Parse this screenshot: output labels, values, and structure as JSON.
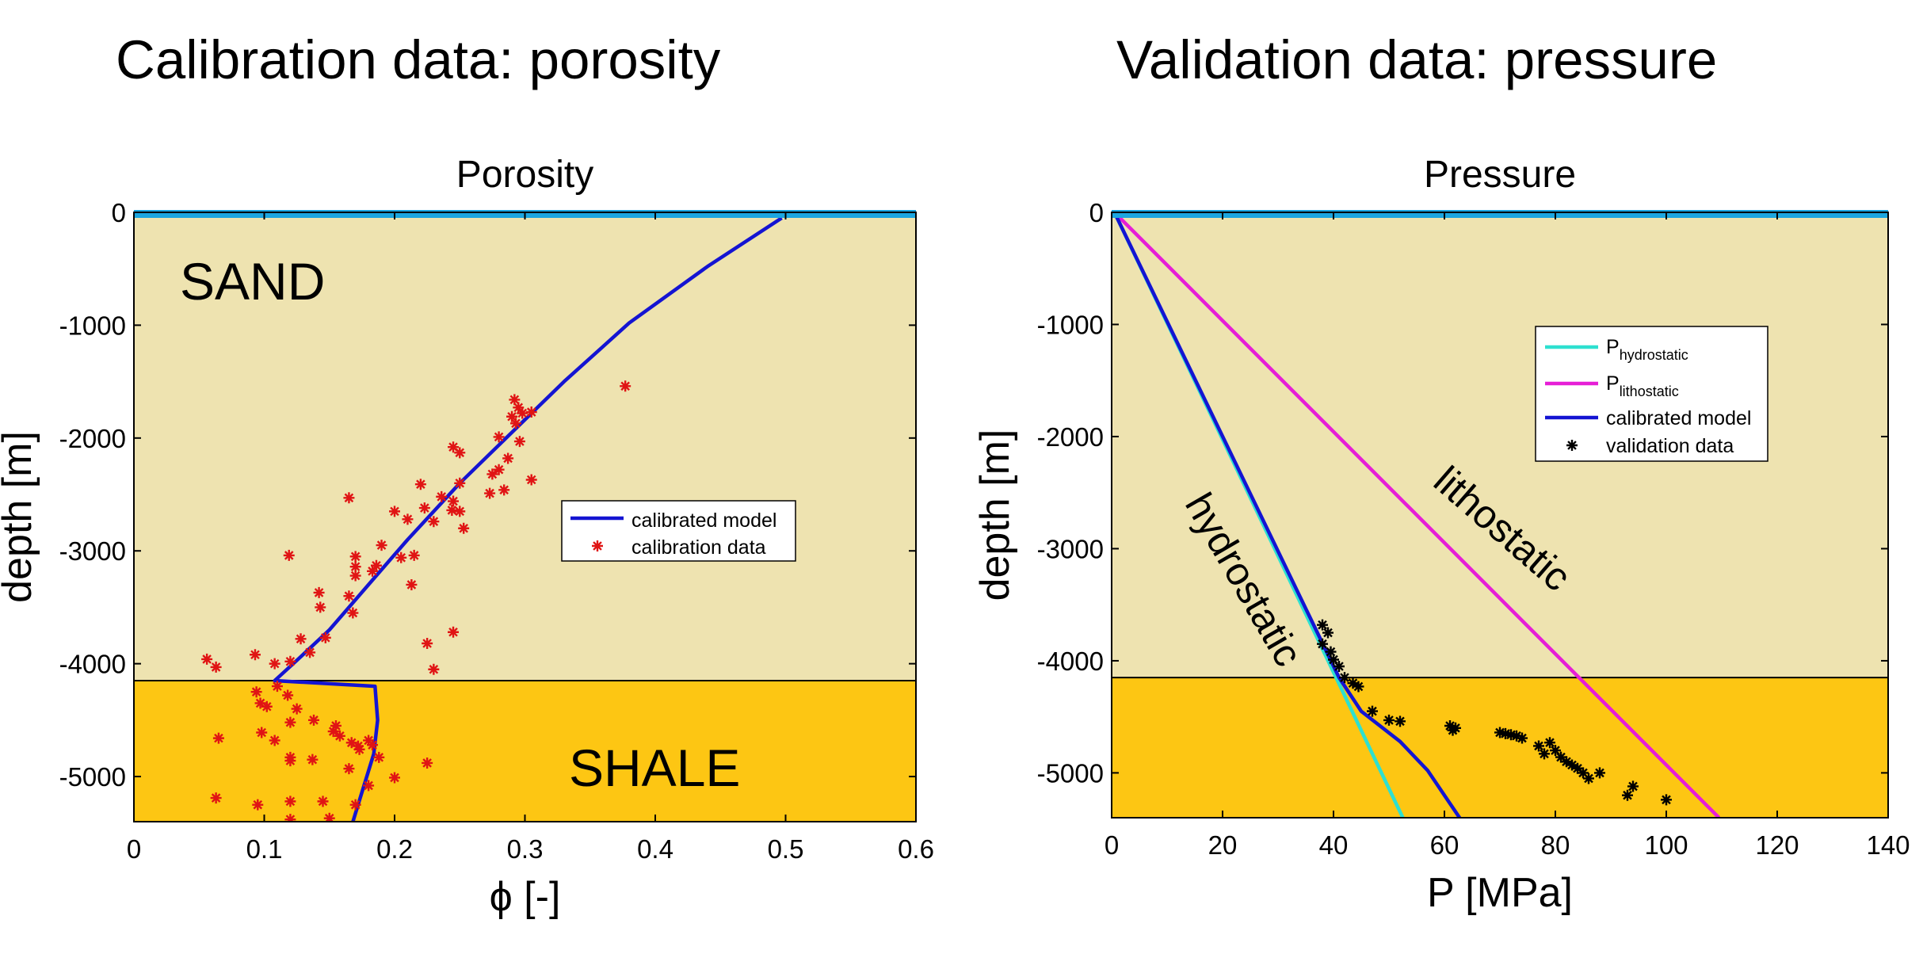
{
  "slide": {
    "left_title": "Calibration data: porosity",
    "right_title": "Validation data: pressure"
  },
  "colors": {
    "sand": "#EEE3B0",
    "shale": "#FDC613",
    "water": "#1CA6E0",
    "model": "#1414D2",
    "calibration_data": "#E01414",
    "hydrostatic": "#2EE0D0",
    "lithostatic": "#E61ED6",
    "validation_data": "#000000"
  },
  "chart_data": [
    {
      "type": "scatter",
      "title": "Porosity",
      "xlabel": "ϕ [-]",
      "ylabel": "depth [m]",
      "xlim": [
        0,
        0.6
      ],
      "ylim": [
        -5400,
        0
      ],
      "xticks": [
        0,
        0.1,
        0.2,
        0.3,
        0.4,
        0.5,
        0.6
      ],
      "yticks": [
        0,
        -1000,
        -2000,
        -3000,
        -4000,
        -5000
      ],
      "xticklabels": [
        "0",
        "0.1",
        "0.2",
        "0.3",
        "0.4",
        "0.5",
        "0.6"
      ],
      "yticklabels": [
        "0",
        "-1000",
        "-2000",
        "-3000",
        "-4000",
        "-5000"
      ],
      "layer_boundary": -4150,
      "layer_labels": [
        "SAND",
        "SHALE"
      ],
      "legend": {
        "location": "right-center",
        "entries": [
          "calibrated model",
          "calibration data"
        ]
      },
      "series": [
        {
          "name": "calibrated model",
          "style": "line",
          "points": [
            [
              0.497,
              -50
            ],
            [
              0.44,
              -480
            ],
            [
              0.38,
              -980
            ],
            [
              0.33,
              -1500
            ],
            [
              0.29,
              -1950
            ],
            [
              0.25,
              -2400
            ],
            [
              0.21,
              -2900
            ],
            [
              0.18,
              -3300
            ],
            [
              0.15,
              -3700
            ],
            [
              0.126,
              -3960
            ],
            [
              0.108,
              -4150
            ],
            [
              0.185,
              -4200
            ],
            [
              0.187,
              -4500
            ],
            [
              0.184,
              -4800
            ],
            [
              0.176,
              -5100
            ],
            [
              0.168,
              -5400
            ]
          ]
        },
        {
          "name": "calibration data",
          "style": "markers",
          "points": [
            [
              0.377,
              -1540
            ],
            [
              0.292,
              -1660
            ],
            [
              0.295,
              -1730
            ],
            [
              0.298,
              -1780
            ],
            [
              0.29,
              -1810
            ],
            [
              0.305,
              -1770
            ],
            [
              0.293,
              -1870
            ],
            [
              0.28,
              -1990
            ],
            [
              0.296,
              -2030
            ],
            [
              0.245,
              -2080
            ],
            [
              0.25,
              -2130
            ],
            [
              0.287,
              -2180
            ],
            [
              0.28,
              -2280
            ],
            [
              0.275,
              -2320
            ],
            [
              0.305,
              -2370
            ],
            [
              0.273,
              -2490
            ],
            [
              0.284,
              -2460
            ],
            [
              0.25,
              -2400
            ],
            [
              0.22,
              -2410
            ],
            [
              0.236,
              -2520
            ],
            [
              0.245,
              -2560
            ],
            [
              0.244,
              -2640
            ],
            [
              0.25,
              -2650
            ],
            [
              0.253,
              -2800
            ],
            [
              0.2,
              -2650
            ],
            [
              0.223,
              -2620
            ],
            [
              0.21,
              -2720
            ],
            [
              0.23,
              -2740
            ],
            [
              0.165,
              -2530
            ],
            [
              0.19,
              -2950
            ],
            [
              0.205,
              -3060
            ],
            [
              0.186,
              -3130
            ],
            [
              0.183,
              -3180
            ],
            [
              0.17,
              -3050
            ],
            [
              0.17,
              -3140
            ],
            [
              0.17,
              -3220
            ],
            [
              0.215,
              -3040
            ],
            [
              0.213,
              -3300
            ],
            [
              0.119,
              -3040
            ],
            [
              0.142,
              -3370
            ],
            [
              0.165,
              -3400
            ],
            [
              0.168,
              -3550
            ],
            [
              0.143,
              -3500
            ],
            [
              0.147,
              -3770
            ],
            [
              0.128,
              -3780
            ],
            [
              0.135,
              -3900
            ],
            [
              0.245,
              -3720
            ],
            [
              0.225,
              -3820
            ],
            [
              0.23,
              -4050
            ],
            [
              0.093,
              -3920
            ],
            [
              0.108,
              -4000
            ],
            [
              0.12,
              -3980
            ],
            [
              0.056,
              -3960
            ],
            [
              0.063,
              -4030
            ],
            [
              0.11,
              -4200
            ],
            [
              0.094,
              -4250
            ],
            [
              0.097,
              -4350
            ],
            [
              0.102,
              -4380
            ],
            [
              0.118,
              -4280
            ],
            [
              0.125,
              -4400
            ],
            [
              0.138,
              -4500
            ],
            [
              0.155,
              -4550
            ],
            [
              0.153,
              -4600
            ],
            [
              0.158,
              -4640
            ],
            [
              0.167,
              -4700
            ],
            [
              0.172,
              -4730
            ],
            [
              0.173,
              -4760
            ],
            [
              0.18,
              -4680
            ],
            [
              0.183,
              -4720
            ],
            [
              0.188,
              -4830
            ],
            [
              0.2,
              -5010
            ],
            [
              0.225,
              -4880
            ],
            [
              0.165,
              -4930
            ],
            [
              0.18,
              -5080
            ],
            [
              0.17,
              -5250
            ],
            [
              0.12,
              -4520
            ],
            [
              0.098,
              -4610
            ],
            [
              0.108,
              -4680
            ],
            [
              0.12,
              -4830
            ],
            [
              0.12,
              -4860
            ],
            [
              0.137,
              -4850
            ],
            [
              0.065,
              -4660
            ],
            [
              0.063,
              -5190
            ],
            [
              0.095,
              -5250
            ],
            [
              0.12,
              -5220
            ],
            [
              0.145,
              -5220
            ],
            [
              0.12,
              -5380
            ],
            [
              0.15,
              -5370
            ]
          ]
        }
      ]
    },
    {
      "type": "line",
      "title": "Pressure",
      "xlabel": "P [MPa]",
      "ylabel": "depth [m]",
      "xlim": [
        0,
        140
      ],
      "ylim": [
        -5400,
        0
      ],
      "xticks": [
        0,
        20,
        40,
        60,
        80,
        100,
        120,
        140
      ],
      "yticks": [
        0,
        -1000,
        -2000,
        -3000,
        -4000,
        -5000
      ],
      "xticklabels": [
        "0",
        "20",
        "40",
        "60",
        "80",
        "100",
        "120",
        "140"
      ],
      "yticklabels": [
        "0",
        "-1000",
        "-2000",
        "-3000",
        "-4000",
        "-5000"
      ],
      "layer_boundary": -4150,
      "annotations": [
        "hydrostatic",
        "lithostatic"
      ],
      "legend": {
        "location": "top-right",
        "entries": [
          "hydrostatic",
          "lithostatic",
          "calibrated model",
          "validation data"
        ]
      },
      "series": [
        {
          "name": "P hydrostatic",
          "legend_main": "P",
          "legend_sub": "hydrostatic",
          "style": "line",
          "points": [
            [
              0.5,
              0
            ],
            [
              52.5,
              -5400
            ]
          ]
        },
        {
          "name": "P lithostatic",
          "legend_main": "P",
          "legend_sub": "lithostatic",
          "style": "line",
          "points": [
            [
              0.5,
              0
            ],
            [
              109.5,
              -5400
            ]
          ]
        },
        {
          "name": "calibrated model",
          "style": "line",
          "points": [
            [
              0.5,
              0
            ],
            [
              41,
              -4150
            ],
            [
              45,
              -4450
            ],
            [
              52,
              -4720
            ],
            [
              57,
              -4980
            ],
            [
              60,
              -5200
            ],
            [
              63,
              -5420
            ]
          ]
        },
        {
          "name": "validation data",
          "style": "markers",
          "points": [
            [
              38,
              -3680
            ],
            [
              39,
              -3750
            ],
            [
              38,
              -3850
            ],
            [
              39.5,
              -3920
            ],
            [
              40,
              -3990
            ],
            [
              41,
              -4050
            ],
            [
              42,
              -4150
            ],
            [
              43.5,
              -4200
            ],
            [
              44.5,
              -4230
            ],
            [
              47,
              -4450
            ],
            [
              50,
              -4530
            ],
            [
              52,
              -4540
            ],
            [
              61,
              -4580
            ],
            [
              62,
              -4600
            ],
            [
              61.5,
              -4620
            ],
            [
              70,
              -4640
            ],
            [
              71,
              -4650
            ],
            [
              72,
              -4660
            ],
            [
              73,
              -4670
            ],
            [
              74,
              -4690
            ],
            [
              77,
              -4760
            ],
            [
              79,
              -4730
            ],
            [
              80,
              -4800
            ],
            [
              78,
              -4830
            ],
            [
              81,
              -4860
            ],
            [
              82,
              -4900
            ],
            [
              83,
              -4930
            ],
            [
              84,
              -4960
            ],
            [
              85,
              -5000
            ],
            [
              86,
              -5050
            ],
            [
              88,
              -5000
            ],
            [
              94,
              -5120
            ],
            [
              93,
              -5200
            ],
            [
              100,
              -5240
            ]
          ]
        }
      ]
    }
  ]
}
